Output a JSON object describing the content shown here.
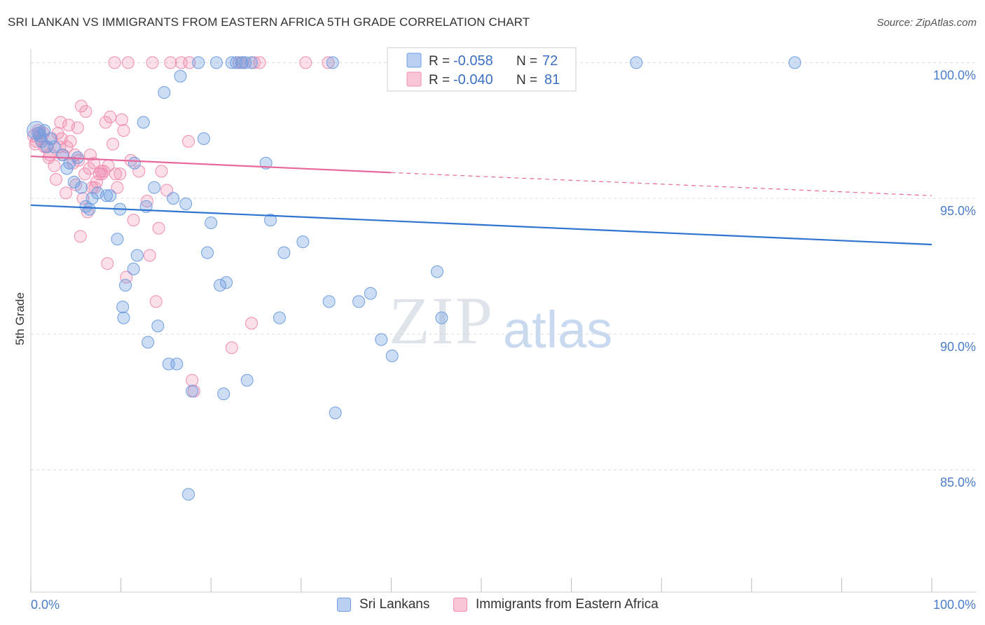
{
  "title": "SRI LANKAN VS IMMIGRANTS FROM EASTERN AFRICA 5TH GRADE CORRELATION CHART",
  "source": "Source: ZipAtlas.com",
  "watermark": {
    "zip": "ZIP",
    "atlas": "atlas"
  },
  "colors": {
    "blue": "#6f9fe0",
    "blue_line": "#2f74d0",
    "pink": "#f08db0",
    "pink_line": "#e8679b",
    "grid": "#d9d9d9",
    "axis_text": "#4a7cc9"
  },
  "legend": {
    "r_label": "R =",
    "n_label": "N =",
    "rows": [
      {
        "r": "-0.058",
        "n": "72"
      },
      {
        "r": "-0.040",
        "n": "81"
      }
    ]
  },
  "bottom_legend": [
    "Sri Lankans",
    "Immigrants from Eastern Africa"
  ],
  "chart_data": {
    "type": "scatter",
    "title": "SRI LANKAN VS IMMIGRANTS FROM EASTERN AFRICA 5TH GRADE CORRELATION CHART",
    "xlabel": "",
    "ylabel": "5th Grade",
    "xlim": [
      0,
      100
    ],
    "ylim": [
      80.5,
      100.5
    ],
    "x_tick_labels": [
      "0.0%",
      "100.0%"
    ],
    "y_ticks": [
      100,
      95,
      90,
      85
    ],
    "y_tick_labels": [
      "100.0%",
      "95.0%",
      "90.0%",
      "85.0%"
    ],
    "grid": true,
    "legend_position": "top-center",
    "series": [
      {
        "name": "Sri Lankans",
        "color": "#6f9fe0",
        "trend": {
          "x": [
            0,
            100
          ],
          "y": [
            94.75,
            93.3
          ],
          "dashed_from": null
        },
        "points": [
          [
            0.8,
            97.4
          ],
          [
            1.0,
            97.3
          ],
          [
            1.2,
            97.1
          ],
          [
            1.5,
            97.5
          ],
          [
            1.8,
            96.9
          ],
          [
            2.2,
            97.2
          ],
          [
            2.6,
            96.9
          ],
          [
            3.5,
            96.6
          ],
          [
            4.0,
            96.1
          ],
          [
            4.3,
            96.3
          ],
          [
            4.8,
            95.6
          ],
          [
            5.2,
            96.5
          ],
          [
            5.6,
            95.4
          ],
          [
            6.1,
            94.7
          ],
          [
            6.5,
            94.6
          ],
          [
            6.8,
            95.0
          ],
          [
            7.4,
            95.2
          ],
          [
            8.4,
            95.1
          ],
          [
            8.8,
            95.1
          ],
          [
            9.6,
            93.5
          ],
          [
            9.9,
            94.6
          ],
          [
            10.3,
            90.6
          ],
          [
            10.2,
            91.0
          ],
          [
            10.5,
            91.8
          ],
          [
            11.5,
            96.3
          ],
          [
            11.4,
            92.4
          ],
          [
            11.8,
            92.9
          ],
          [
            12.5,
            97.8
          ],
          [
            12.8,
            94.7
          ],
          [
            13.0,
            89.7
          ],
          [
            13.7,
            95.4
          ],
          [
            14.1,
            90.3
          ],
          [
            14.8,
            98.9
          ],
          [
            15.3,
            88.9
          ],
          [
            16.2,
            88.9
          ],
          [
            15.8,
            95.0
          ],
          [
            16.6,
            99.5
          ],
          [
            17.2,
            94.8
          ],
          [
            17.5,
            84.1
          ],
          [
            17.9,
            87.9
          ],
          [
            18.6,
            100
          ],
          [
            19.2,
            97.2
          ],
          [
            19.6,
            93.0
          ],
          [
            20.0,
            94.1
          ],
          [
            20.6,
            100
          ],
          [
            21.0,
            91.8
          ],
          [
            21.4,
            87.8
          ],
          [
            21.7,
            91.9
          ],
          [
            22.3,
            100
          ],
          [
            22.8,
            100
          ],
          [
            23.4,
            100
          ],
          [
            23.8,
            100
          ],
          [
            24.0,
            88.3
          ],
          [
            24.5,
            100
          ],
          [
            26.1,
            96.3
          ],
          [
            26.6,
            94.2
          ],
          [
            27.6,
            90.6
          ],
          [
            28.1,
            93.0
          ],
          [
            30.2,
            93.4
          ],
          [
            33.1,
            91.2
          ],
          [
            33.5,
            100
          ],
          [
            33.8,
            87.1
          ],
          [
            36.4,
            91.2
          ],
          [
            37.7,
            91.5
          ],
          [
            38.9,
            89.8
          ],
          [
            40.1,
            89.2
          ],
          [
            41.3,
            100
          ],
          [
            45.1,
            92.3
          ],
          [
            45.6,
            90.6
          ],
          [
            67.2,
            100
          ],
          [
            84.8,
            100
          ],
          [
            0.6,
            97.5
          ]
        ]
      },
      {
        "name": "Immigrants from Eastern Africa",
        "color": "#f08db0",
        "trend": {
          "x": [
            0,
            40,
            100
          ],
          "y": [
            96.55,
            95.95,
            95.1
          ],
          "dashed_from": 40
        },
        "points": [
          [
            0.3,
            97.3
          ],
          [
            0.6,
            97.1
          ],
          [
            0.8,
            97.5
          ],
          [
            1.1,
            97.2
          ],
          [
            1.4,
            97.4
          ],
          [
            1.7,
            96.9
          ],
          [
            2.0,
            96.5
          ],
          [
            2.3,
            97.2
          ],
          [
            2.6,
            96.2
          ],
          [
            2.8,
            95.7
          ],
          [
            3.0,
            97.4
          ],
          [
            3.3,
            97.8
          ],
          [
            3.6,
            96.6
          ],
          [
            3.9,
            95.2
          ],
          [
            4.2,
            97.7
          ],
          [
            4.4,
            97.1
          ],
          [
            4.7,
            96.3
          ],
          [
            5.0,
            95.5
          ],
          [
            5.3,
            96.4
          ],
          [
            5.5,
            93.6
          ],
          [
            5.6,
            98.4
          ],
          [
            5.8,
            95.0
          ],
          [
            6.1,
            98.2
          ],
          [
            6.3,
            94.5
          ],
          [
            6.6,
            96.6
          ],
          [
            6.8,
            95.4
          ],
          [
            7.0,
            96.3
          ],
          [
            7.3,
            95.6
          ],
          [
            7.6,
            95.9
          ],
          [
            7.9,
            95.9
          ],
          [
            8.1,
            96.0
          ],
          [
            8.3,
            97.8
          ],
          [
            8.5,
            92.6
          ],
          [
            8.8,
            98.0
          ],
          [
            9.1,
            97.0
          ],
          [
            9.3,
            100
          ],
          [
            9.6,
            95.4
          ],
          [
            9.9,
            95.9
          ],
          [
            10.1,
            97.9
          ],
          [
            10.3,
            97.5
          ],
          [
            10.6,
            92.1
          ],
          [
            10.8,
            100
          ],
          [
            11.1,
            96.4
          ],
          [
            11.4,
            94.2
          ],
          [
            12.9,
            94.9
          ],
          [
            13.2,
            92.9
          ],
          [
            13.5,
            100
          ],
          [
            13.9,
            91.2
          ],
          [
            14.2,
            93.9
          ],
          [
            14.5,
            96.0
          ],
          [
            15.1,
            95.3
          ],
          [
            15.5,
            100
          ],
          [
            16.7,
            100
          ],
          [
            17.5,
            97.1
          ],
          [
            17.6,
            100
          ],
          [
            17.9,
            88.3
          ],
          [
            18.1,
            87.9
          ],
          [
            22.3,
            89.5
          ],
          [
            23.1,
            100
          ],
          [
            23.5,
            100
          ],
          [
            24.8,
            100
          ],
          [
            24.5,
            90.4
          ],
          [
            25.4,
            100
          ],
          [
            30.5,
            100
          ],
          [
            33.0,
            100
          ],
          [
            7.8,
            96.0
          ],
          [
            6.0,
            95.9
          ],
          [
            12.0,
            96.0
          ],
          [
            4.9,
            96.6
          ],
          [
            3.4,
            97.2
          ],
          [
            2.1,
            96.6
          ],
          [
            1.5,
            96.9
          ],
          [
            1.0,
            97.4
          ],
          [
            0.5,
            97.0
          ],
          [
            5.2,
            97.6
          ],
          [
            7.1,
            95.4
          ],
          [
            9.4,
            95.9
          ],
          [
            4.0,
            96.9
          ],
          [
            6.5,
            96.1
          ],
          [
            8.6,
            96.2
          ],
          [
            3.2,
            96.9
          ]
        ]
      }
    ]
  }
}
